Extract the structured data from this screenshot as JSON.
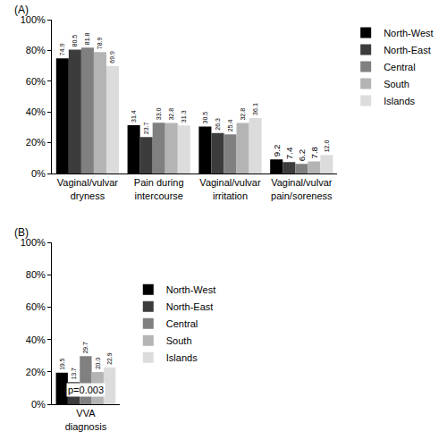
{
  "chart_data": [
    {
      "type": "bar",
      "title": "(A)",
      "categories": [
        "Vaginal/vulvar dryness",
        "Pain during intercourse",
        "Vaginal/vulvar irritation",
        "Vaginal/vulvar pain/soreness"
      ],
      "series": [
        {
          "name": "North-West",
          "color": "#000000",
          "values": [
            74.9,
            31.4,
            30.5,
            9.2
          ],
          "value_labels": [
            "74.9",
            "31.4",
            "30.5",
            "9.2"
          ]
        },
        {
          "name": "North-East",
          "color": "#3c3c3c",
          "values": [
            80.5,
            23.7,
            26.3,
            7.4
          ],
          "value_labels": [
            "80.5",
            "23.7",
            "26.3",
            "7.4"
          ]
        },
        {
          "name": "Central",
          "color": "#808080",
          "values": [
            81.8,
            33.0,
            25.4,
            6.2
          ],
          "value_labels": [
            "81.8",
            "33.0",
            "25.4",
            "6.2"
          ]
        },
        {
          "name": "South",
          "color": "#b4b4b4",
          "values": [
            78.9,
            32.8,
            32.8,
            7.8
          ],
          "value_labels": [
            "78.9",
            "32.8",
            "32.8",
            "7.8"
          ]
        },
        {
          "name": "Islands",
          "color": "#dcdcdc",
          "values": [
            69.9,
            31.3,
            36.1,
            12.0
          ],
          "value_labels": [
            "69.9",
            "31.3",
            "36.1",
            "12.0"
          ]
        }
      ],
      "ylim": [
        0,
        100
      ],
      "yticks": [
        {
          "value": 0,
          "label": "0%"
        },
        {
          "value": 20,
          "label": "20%"
        },
        {
          "value": 40,
          "label": "40%"
        },
        {
          "value": 60,
          "label": "60%"
        },
        {
          "value": 80,
          "label": "80%"
        },
        {
          "value": 100,
          "label": "100%"
        }
      ],
      "data_labels": true,
      "legend": "upper right",
      "grid": false
    },
    {
      "type": "bar",
      "title": "(B)",
      "categories": [
        "VVA diagnosis"
      ],
      "series": [
        {
          "name": "North-West",
          "color": "#000000",
          "values": [
            19.5
          ],
          "value_labels": [
            "19.5"
          ]
        },
        {
          "name": "North-East",
          "color": "#3c3c3c",
          "values": [
            13.7
          ],
          "value_labels": [
            "13.7"
          ]
        },
        {
          "name": "Central",
          "color": "#808080",
          "values": [
            29.7
          ],
          "value_labels": [
            "29.7"
          ]
        },
        {
          "name": "South",
          "color": "#b4b4b4",
          "values": [
            20.0
          ],
          "value_labels": [
            "20.0"
          ]
        },
        {
          "name": "Islands",
          "color": "#dcdcdc",
          "values": [
            22.9
          ],
          "value_labels": [
            "22.9"
          ]
        }
      ],
      "ylim": [
        0,
        100
      ],
      "yticks": [
        {
          "value": 0,
          "label": "0%"
        },
        {
          "value": 20,
          "label": "20%"
        },
        {
          "value": 40,
          "label": "40%"
        },
        {
          "value": 60,
          "label": "60%"
        },
        {
          "value": 80,
          "label": "80%"
        },
        {
          "value": 100,
          "label": "100%"
        }
      ],
      "annotations": [
        {
          "text": "p=0.003",
          "x": "VVA diagnosis",
          "y": 9
        }
      ],
      "data_labels": true,
      "legend": "right",
      "grid": false
    }
  ]
}
